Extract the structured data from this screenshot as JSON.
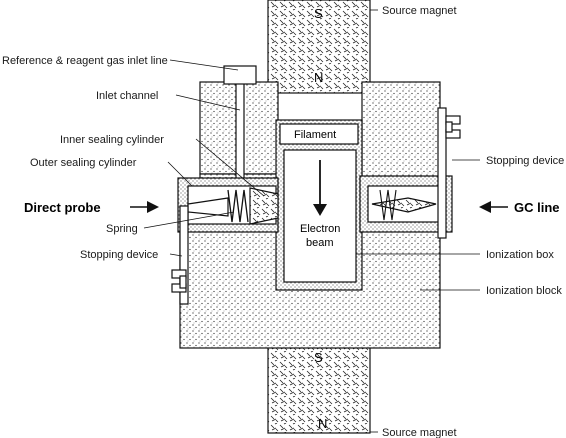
{
  "labels": {
    "source_magnet_top": "Source magnet",
    "source_magnet_bottom": "Source magnet",
    "reference_gas": "Reference & reagent gas inlet line",
    "inlet_channel": "Inlet channel",
    "inner_sealing": "Inner sealing cylinder",
    "outer_sealing": "Outer sealing cylinder",
    "direct_probe": "Direct probe",
    "spring": "Spring",
    "stopping_device_left": "Stopping device",
    "stopping_device_right": "Stopping device",
    "gc_line": "GC line",
    "ionization_box": "Ionization box",
    "ionization_block": "Ionization block",
    "filament": "Filament",
    "electron": "Electron",
    "beam": "beam"
  },
  "poles": {
    "top_s": "S",
    "top_n": "N",
    "bottom_s": "S",
    "bottom_n": "N"
  },
  "colors": {
    "stroke": "#111111",
    "text": "#1a1a1a"
  }
}
